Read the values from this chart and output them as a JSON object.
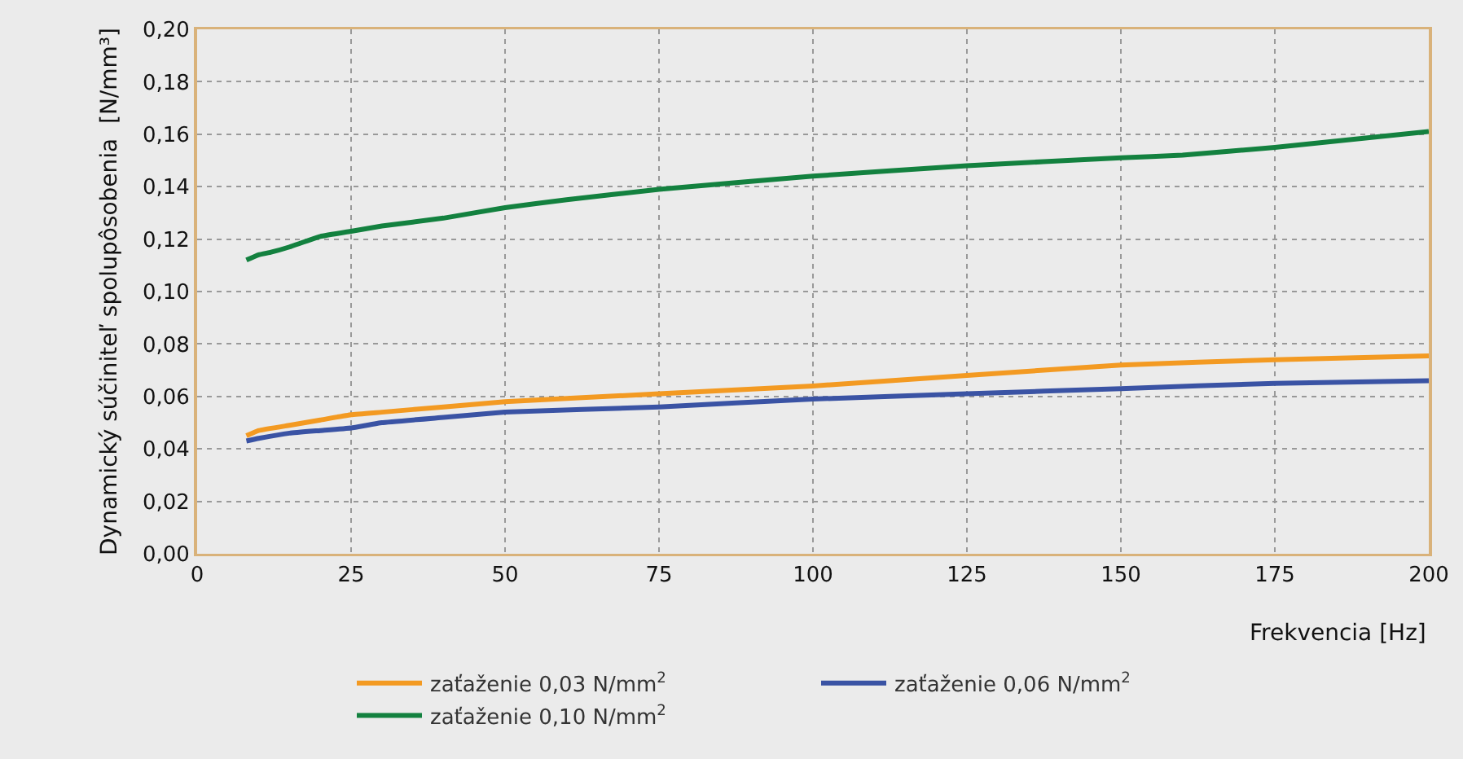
{
  "chart_data": {
    "type": "line",
    "xlabel": "Frekvencia [Hz]",
    "ylabel": "Dynamický súčiniteľ spolupôsobenia  [N/mm³]",
    "xlim": [
      0,
      200
    ],
    "xticks": [
      0,
      25,
      50,
      75,
      100,
      125,
      150,
      175,
      200
    ],
    "ylim": [
      0,
      0.2
    ],
    "yticks": [
      {
        "value": 0,
        "label": "0,00"
      },
      {
        "value": 0.02,
        "label": "0,02"
      },
      {
        "value": 0.04,
        "label": "0,04"
      },
      {
        "value": 0.06,
        "label": "0,06"
      },
      {
        "value": 0.08,
        "label": "0,08"
      },
      {
        "value": 0.1,
        "label": "0,10"
      },
      {
        "value": 0.12,
        "label": "0,12"
      },
      {
        "value": 0.14,
        "label": "0,14"
      },
      {
        "value": 0.16,
        "label": "0,16"
      },
      {
        "value": 0.18,
        "label": "0,18"
      },
      {
        "value": 0.2,
        "label": "0,20"
      }
    ],
    "grid": true,
    "legend": "bottom",
    "marker": "none",
    "line_style": "solid",
    "series": [
      {
        "name": "zaťaženie 0,03 N/mm$^{2}$",
        "color": "#f39a22",
        "x": [
          8,
          10,
          15,
          20,
          25,
          30,
          40,
          50,
          75,
          100,
          125,
          150,
          175,
          200
        ],
        "values": [
          0.045,
          0.047,
          0.049,
          0.051,
          0.053,
          0.054,
          0.056,
          0.058,
          0.061,
          0.064,
          0.068,
          0.072,
          0.074,
          0.0755
        ]
      },
      {
        "name": "zaťaženie 0,06 N/mm$^{2}$",
        "color": "#3a53a4",
        "x": [
          8,
          10,
          15,
          20,
          25,
          30,
          40,
          50,
          75,
          100,
          125,
          150,
          175,
          200
        ],
        "values": [
          0.043,
          0.044,
          0.046,
          0.047,
          0.048,
          0.05,
          0.052,
          0.054,
          0.056,
          0.059,
          0.061,
          0.063,
          0.065,
          0.066
        ]
      },
      {
        "name": "zaťaženie 0,10 N/mm$^{2}$",
        "color": "#13813f",
        "x": [
          8,
          10,
          12,
          15,
          20,
          25,
          30,
          40,
          50,
          60,
          75,
          100,
          125,
          150,
          160,
          175,
          200
        ],
        "values": [
          0.112,
          0.114,
          0.115,
          0.117,
          0.121,
          0.123,
          0.125,
          0.128,
          0.132,
          0.135,
          0.139,
          0.144,
          0.148,
          0.151,
          0.152,
          0.155,
          0.161
        ]
      }
    ]
  }
}
